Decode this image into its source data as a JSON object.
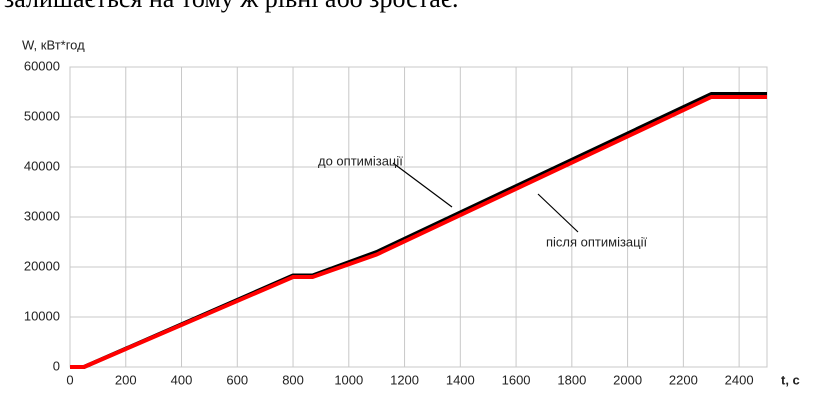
{
  "header_text": "залишається на тому ж рівні або зростає.",
  "chart_data": {
    "type": "line",
    "y_label": "W, кВт*год",
    "x_label": "t, с",
    "x": [
      0,
      50,
      800,
      870,
      1100,
      2300,
      2500
    ],
    "series": [
      {
        "name": "до оптимізації",
        "color": "#000000",
        "values": [
          0,
          0,
          18300,
          18300,
          23000,
          54600,
          54600
        ]
      },
      {
        "name": "після оптимізації",
        "color": "#ff0000",
        "values": [
          0,
          0,
          18000,
          18000,
          22500,
          54000,
          54000
        ]
      }
    ],
    "xlim": [
      0,
      2500
    ],
    "xticks": [
      0,
      200,
      400,
      600,
      800,
      1000,
      1200,
      1400,
      1600,
      1800,
      2000,
      2200,
      2400
    ],
    "ylim": [
      0,
      60000
    ],
    "yticks": [
      0,
      10000,
      20000,
      30000,
      40000,
      50000,
      60000
    ],
    "grid": true
  }
}
